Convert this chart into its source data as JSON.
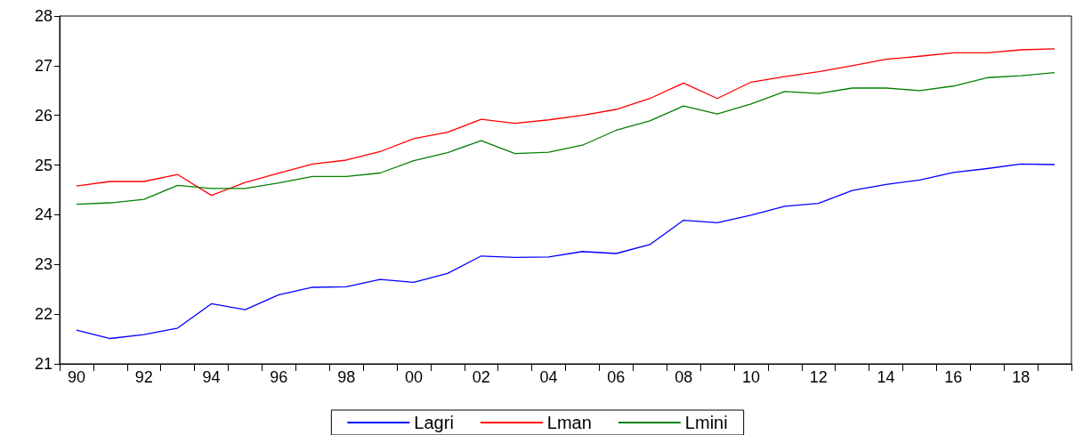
{
  "chart_data": {
    "type": "line",
    "categories": [
      "90",
      null,
      "92",
      null,
      "94",
      null,
      "96",
      null,
      "98",
      null,
      "00",
      null,
      "02",
      null,
      "04",
      null,
      "06",
      null,
      "08",
      null,
      "10",
      null,
      "12",
      null,
      "14",
      null,
      "16",
      null,
      "18",
      null
    ],
    "series": [
      {
        "name": "Lagri",
        "color": "#0000ff",
        "values": [
          21.68,
          21.51,
          21.59,
          21.72,
          22.21,
          22.09,
          22.39,
          22.54,
          22.55,
          22.7,
          22.64,
          22.82,
          23.17,
          23.14,
          23.15,
          23.26,
          23.22,
          23.4,
          23.89,
          23.84,
          23.99,
          24.17,
          24.23,
          24.49,
          24.61,
          24.7,
          24.85,
          24.93,
          25.02,
          25.01
        ]
      },
      {
        "name": "Lman",
        "color": "#ff0000",
        "values": [
          24.58,
          24.67,
          24.67,
          24.81,
          24.39,
          24.65,
          24.84,
          25.02,
          25.1,
          25.27,
          25.53,
          25.66,
          25.92,
          25.84,
          25.91,
          26.0,
          26.12,
          26.34,
          26.65,
          26.34,
          26.67,
          26.78,
          26.88,
          27.0,
          27.13,
          27.19,
          27.26,
          27.26,
          27.32,
          27.34
        ]
      },
      {
        "name": "Lmini",
        "color": "#008000",
        "values": [
          24.21,
          24.24,
          24.31,
          24.59,
          24.53,
          24.53,
          24.64,
          24.77,
          24.77,
          24.84,
          25.09,
          25.25,
          25.49,
          25.23,
          25.26,
          25.4,
          25.7,
          25.89,
          26.19,
          26.03,
          26.23,
          26.48,
          26.44,
          26.55,
          26.55,
          26.5,
          26.59,
          26.76,
          26.8,
          26.86
        ]
      }
    ],
    "ylim": [
      21,
      28
    ],
    "yticks": [
      21,
      22,
      23,
      24,
      25,
      26,
      27,
      28
    ],
    "grid": false,
    "legend": "bottom",
    "marker": "none",
    "line_style": "solid"
  }
}
